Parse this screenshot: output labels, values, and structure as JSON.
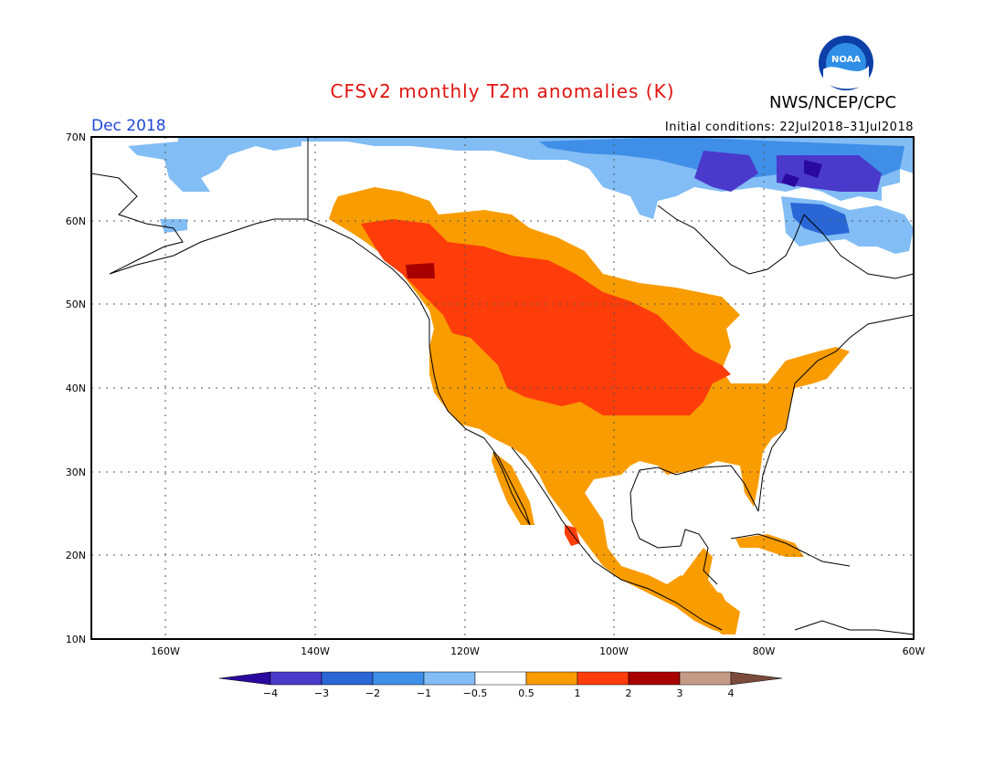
{
  "header": {
    "title": "CFSv2 monthly T2m anomalies (K)",
    "agency": "NWS/NCEP/CPC",
    "period": "Dec 2018",
    "initial_conditions": "Initial conditions: 22Jul2018–31Jul2018",
    "logo_text": "NOAA"
  },
  "map": {
    "lat_labels": [
      "70N",
      "60N",
      "50N",
      "40N",
      "30N",
      "20N",
      "10N"
    ],
    "lon_labels": [
      "160W",
      "140W",
      "120W",
      "100W",
      "80W",
      "60W"
    ]
  },
  "colorbar": {
    "labels": [
      "−4",
      "−3",
      "−2",
      "−1",
      "−0.5",
      "0.5",
      "1",
      "2",
      "3",
      "4"
    ],
    "colors": [
      "#2a0a9e",
      "#4a3acb",
      "#2b66d6",
      "#3f8ee8",
      "#82bdf5",
      "#ffffff",
      "#f99c00",
      "#ff3d0a",
      "#a80000",
      "#c59b87",
      "#7a4a3a"
    ]
  }
}
